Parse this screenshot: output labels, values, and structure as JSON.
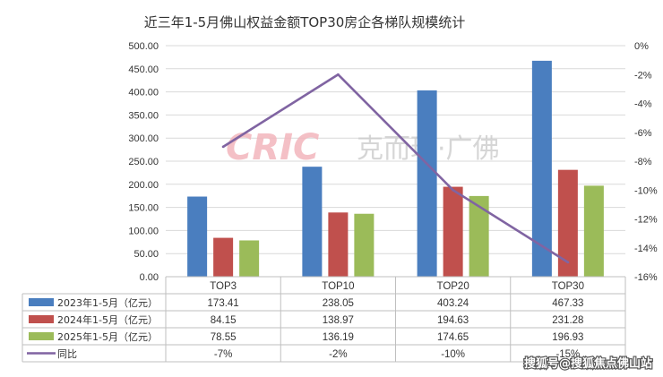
{
  "chart_data": {
    "type": "bar",
    "title": "近三年1-5月佛山权益金额TOP30房企各梯队规模统计",
    "categories": [
      "TOP3",
      "TOP10",
      "TOP20",
      "TOP30"
    ],
    "series": [
      {
        "name": "2023年1-5月（亿元）",
        "type": "bar",
        "color": "#4a7ebf",
        "values": [
          173.41,
          238.05,
          403.24,
          467.33
        ],
        "labels": [
          "173.41",
          "238.05",
          "403.24",
          "467.33"
        ]
      },
      {
        "name": "2024年1-5月（亿元）",
        "type": "bar",
        "color": "#c0504d",
        "values": [
          84.15,
          138.97,
          194.63,
          231.28
        ],
        "labels": [
          "84.15",
          "138.97",
          "194.63",
          "231.28"
        ]
      },
      {
        "name": "2025年1-5月（亿元）",
        "type": "bar",
        "color": "#9bbb59",
        "values": [
          78.55,
          136.19,
          174.65,
          196.93
        ],
        "labels": [
          "78.55",
          "136.19",
          "174.65",
          "196.93"
        ]
      },
      {
        "name": "同比",
        "type": "line",
        "axis": "right",
        "color": "#8064a2",
        "values": [
          -7,
          -2,
          -10,
          -15
        ],
        "labels": [
          "-7%",
          "-2%",
          "-10%",
          "-15%"
        ]
      }
    ],
    "y_left": {
      "ylim": [
        0,
        500
      ],
      "ticks": [
        "0.00",
        "50.00",
        "100.00",
        "150.00",
        "200.00",
        "250.00",
        "300.00",
        "350.00",
        "400.00",
        "450.00",
        "500.00"
      ]
    },
    "y_right": {
      "ylim": [
        -16,
        0
      ],
      "ticks": [
        "0%",
        "-2%",
        "-4%",
        "-6%",
        "-8%",
        "-10%",
        "-12%",
        "-14%",
        "-16%"
      ]
    },
    "grid": true,
    "legend": "data-table"
  },
  "watermark": {
    "logo": "CRIC",
    "text": "克而瑞·广佛"
  },
  "footer": {
    "text": "搜狐号@搜狐焦点佛山站"
  }
}
